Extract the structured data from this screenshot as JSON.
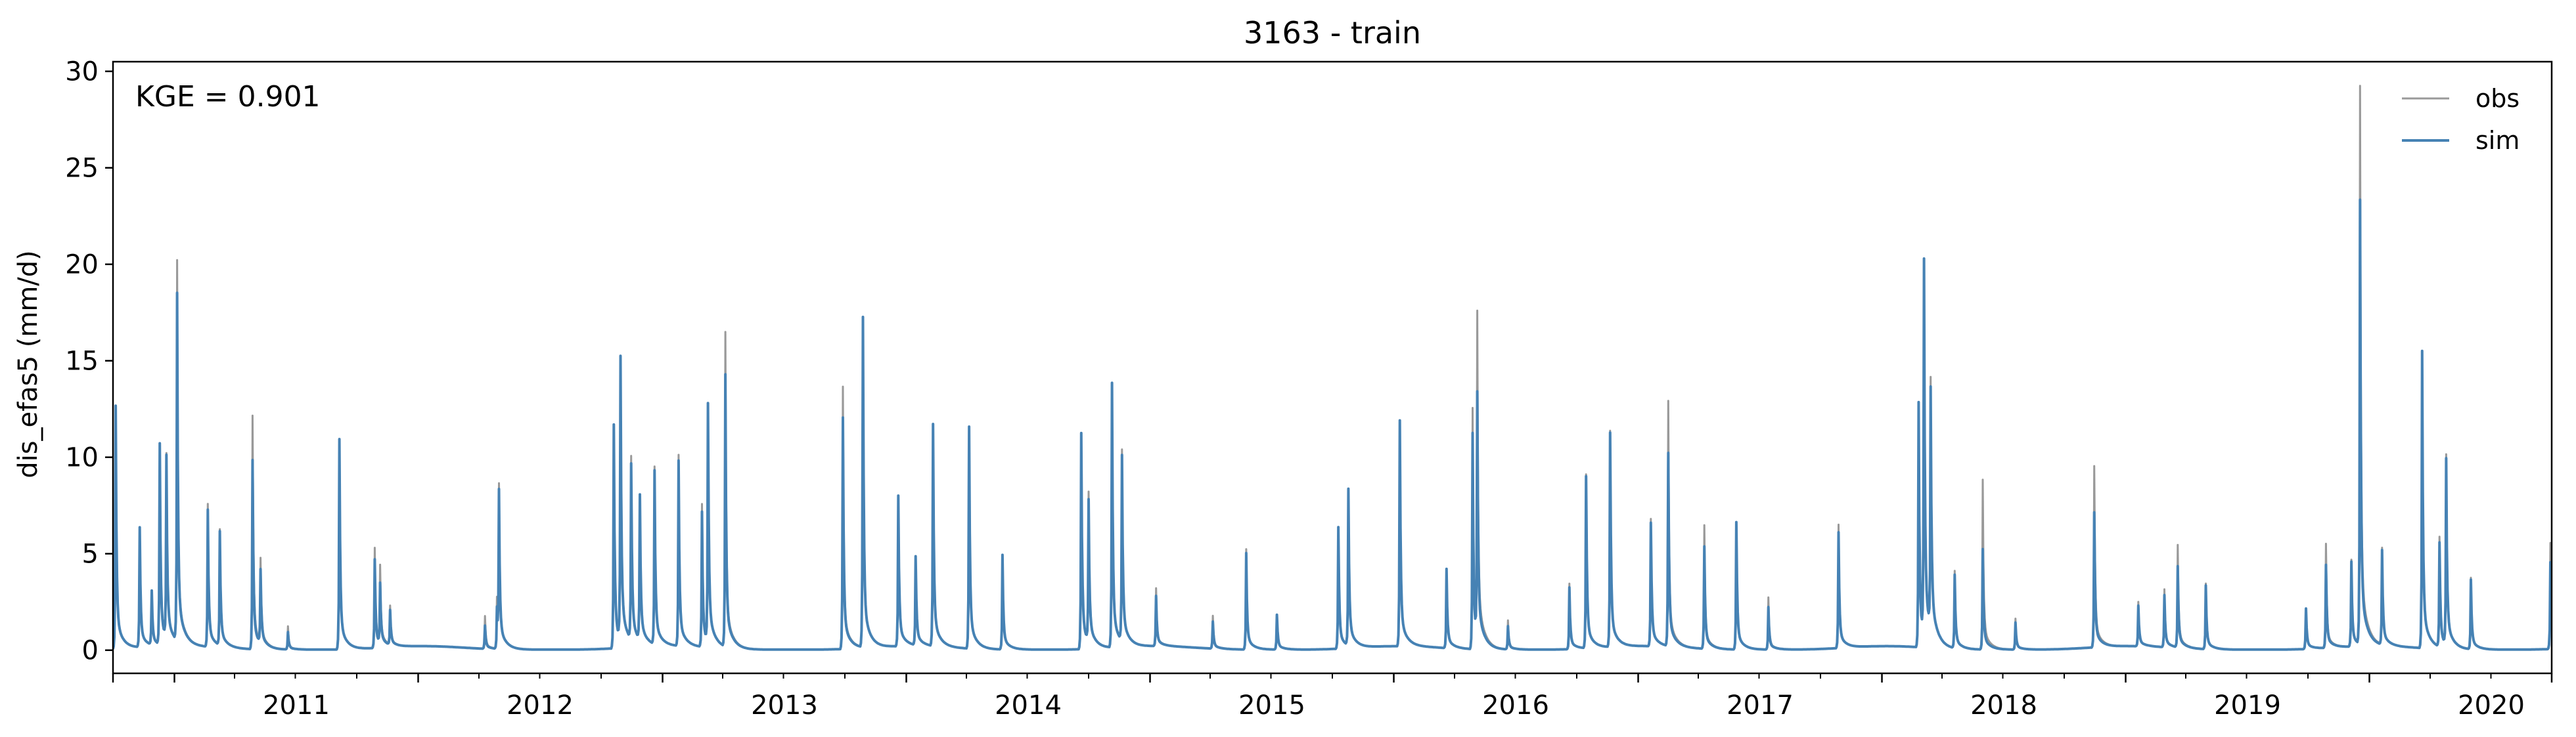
{
  "chart_data": {
    "type": "line",
    "title": "3163 - train",
    "ylabel": "dis_efas5 (mm/d)",
    "xlabel": "",
    "annotation": "KGE = 0.901",
    "x_start": "2010-10-01",
    "x_end": "2020-09-30",
    "xlim": [
      "2010-10-01",
      "2020-09-30"
    ],
    "ylim": [
      -1.2,
      30.5
    ],
    "yticks": [
      0,
      5,
      10,
      15,
      20,
      25,
      30
    ],
    "xticks": [
      {
        "date": "2011-01-01",
        "label": "2011"
      },
      {
        "date": "2012-01-01",
        "label": "2012"
      },
      {
        "date": "2013-01-01",
        "label": "2013"
      },
      {
        "date": "2014-01-01",
        "label": "2014"
      },
      {
        "date": "2015-01-01",
        "label": "2015"
      },
      {
        "date": "2016-01-01",
        "label": "2016"
      },
      {
        "date": "2017-01-01",
        "label": "2017"
      },
      {
        "date": "2018-01-01",
        "label": "2018"
      },
      {
        "date": "2019-01-01",
        "label": "2019"
      },
      {
        "date": "2020-01-01",
        "label": "2020"
      }
    ],
    "grid": false,
    "legend_position": "top-right",
    "series": [
      {
        "name": "obs",
        "color": "#999999",
        "peaks": [
          [
            "2010-10-05",
            12.4
          ],
          [
            "2010-11-10",
            6.1
          ],
          [
            "2010-11-28",
            2.8
          ],
          [
            "2010-12-10",
            10.3
          ],
          [
            "2010-12-20",
            9.5
          ],
          [
            "2011-01-05",
            19.7
          ],
          [
            "2011-02-20",
            7.4
          ],
          [
            "2011-03-10",
            6.0
          ],
          [
            "2011-04-28",
            12.1
          ],
          [
            "2011-05-10",
            4.3
          ],
          [
            "2011-06-20",
            1.2
          ],
          [
            "2011-09-05",
            10.6
          ],
          [
            "2011-10-28",
            5.2
          ],
          [
            "2011-11-05",
            4.0
          ],
          [
            "2011-11-20",
            2.0
          ],
          [
            "2012-04-10",
            1.7
          ],
          [
            "2012-04-28",
            2.6
          ],
          [
            "2012-05-01",
            8.1
          ],
          [
            "2012-10-20",
            11.6
          ],
          [
            "2012-10-30",
            14.2
          ],
          [
            "2012-11-15",
            9.5
          ],
          [
            "2012-11-28",
            7.0
          ],
          [
            "2012-12-20",
            9.2
          ],
          [
            "2013-01-25",
            9.9
          ],
          [
            "2013-03-01",
            7.4
          ],
          [
            "2013-03-10",
            11.8
          ],
          [
            "2013-04-05",
            16.3
          ],
          [
            "2013-09-28",
            13.6
          ],
          [
            "2013-10-28",
            17.0
          ],
          [
            "2013-12-20",
            7.6
          ],
          [
            "2014-01-15",
            4.4
          ],
          [
            "2014-02-10",
            10.8
          ],
          [
            "2014-04-05",
            11.4
          ],
          [
            "2014-05-25",
            4.8
          ],
          [
            "2014-09-20",
            11.1
          ],
          [
            "2014-10-01",
            7.7
          ],
          [
            "2014-11-05",
            13.3
          ],
          [
            "2014-11-20",
            9.9
          ],
          [
            "2015-01-10",
            3.0
          ],
          [
            "2015-04-05",
            1.7
          ],
          [
            "2015-05-25",
            5.2
          ],
          [
            "2015-07-10",
            1.8
          ],
          [
            "2015-10-10",
            6.2
          ],
          [
            "2015-10-25",
            7.9
          ],
          [
            "2016-01-10",
            11.6
          ],
          [
            "2016-03-20",
            4.0
          ],
          [
            "2016-04-28",
            12.5
          ],
          [
            "2016-05-05",
            16.7
          ],
          [
            "2016-06-20",
            1.5
          ],
          [
            "2016-09-20",
            3.4
          ],
          [
            "2016-10-15",
            9.0
          ],
          [
            "2016-11-20",
            11.2
          ],
          [
            "2017-01-20",
            6.6
          ],
          [
            "2017-02-15",
            12.7
          ],
          [
            "2017-04-10",
            6.4
          ],
          [
            "2017-05-28",
            6.6
          ],
          [
            "2017-07-15",
            2.7
          ],
          [
            "2017-10-28",
            6.4
          ],
          [
            "2018-02-25",
            12.6
          ],
          [
            "2018-03-05",
            19.4
          ],
          [
            "2018-03-15",
            12.9
          ],
          [
            "2018-04-20",
            4.0
          ],
          [
            "2018-06-01",
            8.8
          ],
          [
            "2018-07-20",
            1.6
          ],
          [
            "2018-11-15",
            9.4
          ],
          [
            "2019-01-20",
            2.3
          ],
          [
            "2019-02-28",
            3.0
          ],
          [
            "2019-03-20",
            5.3
          ],
          [
            "2019-05-01",
            3.4
          ],
          [
            "2019-09-28",
            2.1
          ],
          [
            "2019-10-28",
            5.4
          ],
          [
            "2019-12-05",
            4.5
          ],
          [
            "2019-12-18",
            28.9
          ],
          [
            "2020-01-20",
            5.0
          ],
          [
            "2020-03-20",
            15.3
          ],
          [
            "2020-04-15",
            5.7
          ],
          [
            "2020-04-25",
            9.8
          ],
          [
            "2020-06-01",
            3.7
          ],
          [
            "2020-09-28",
            5.5
          ]
        ]
      },
      {
        "name": "sim",
        "color": "#4682b4",
        "peaks": [
          [
            "2010-10-05",
            12.6
          ],
          [
            "2010-11-10",
            6.2
          ],
          [
            "2010-11-28",
            2.8
          ],
          [
            "2010-12-10",
            10.4
          ],
          [
            "2010-12-20",
            9.4
          ],
          [
            "2011-01-05",
            18.0
          ],
          [
            "2011-02-20",
            7.1
          ],
          [
            "2011-03-10",
            5.9
          ],
          [
            "2011-04-28",
            9.8
          ],
          [
            "2011-05-10",
            3.8
          ],
          [
            "2011-06-20",
            0.9
          ],
          [
            "2011-09-05",
            10.9
          ],
          [
            "2011-10-28",
            4.6
          ],
          [
            "2011-11-05",
            3.1
          ],
          [
            "2011-11-20",
            1.8
          ],
          [
            "2012-04-10",
            1.2
          ],
          [
            "2012-04-28",
            2.1
          ],
          [
            "2012-05-01",
            7.9
          ],
          [
            "2012-10-20",
            11.6
          ],
          [
            "2012-10-30",
            14.6
          ],
          [
            "2012-11-15",
            9.1
          ],
          [
            "2012-11-28",
            7.5
          ],
          [
            "2012-12-20",
            9.0
          ],
          [
            "2013-01-25",
            9.6
          ],
          [
            "2013-03-01",
            7.0
          ],
          [
            "2013-03-10",
            12.3
          ],
          [
            "2013-04-05",
            14.1
          ],
          [
            "2013-09-28",
            12.0
          ],
          [
            "2013-10-28",
            17.1
          ],
          [
            "2013-12-20",
            7.8
          ],
          [
            "2014-01-15",
            4.6
          ],
          [
            "2014-02-10",
            11.5
          ],
          [
            "2014-04-05",
            11.5
          ],
          [
            "2014-05-25",
            4.9
          ],
          [
            "2014-09-20",
            11.2
          ],
          [
            "2014-10-01",
            7.3
          ],
          [
            "2014-11-05",
            13.7
          ],
          [
            "2014-11-20",
            9.6
          ],
          [
            "2015-01-10",
            2.6
          ],
          [
            "2015-04-05",
            1.4
          ],
          [
            "2015-05-25",
            5.0
          ],
          [
            "2015-07-10",
            1.8
          ],
          [
            "2015-10-10",
            6.3
          ],
          [
            "2015-10-25",
            8.1
          ],
          [
            "2016-01-10",
            11.7
          ],
          [
            "2016-03-20",
            4.1
          ],
          [
            "2016-04-28",
            11.2
          ],
          [
            "2016-05-05",
            12.6
          ],
          [
            "2016-06-20",
            1.2
          ],
          [
            "2016-09-20",
            3.2
          ],
          [
            "2016-10-15",
            8.9
          ],
          [
            "2016-11-20",
            11.1
          ],
          [
            "2017-01-20",
            6.4
          ],
          [
            "2017-02-15",
            10.0
          ],
          [
            "2017-04-10",
            5.3
          ],
          [
            "2017-05-28",
            6.6
          ],
          [
            "2017-07-15",
            2.2
          ],
          [
            "2017-10-28",
            6.0
          ],
          [
            "2018-02-25",
            12.7
          ],
          [
            "2018-03-05",
            19.4
          ],
          [
            "2018-03-15",
            12.4
          ],
          [
            "2018-04-20",
            3.8
          ],
          [
            "2018-06-01",
            5.2
          ],
          [
            "2018-07-20",
            1.4
          ],
          [
            "2018-11-15",
            7.0
          ],
          [
            "2019-01-20",
            2.1
          ],
          [
            "2019-02-28",
            2.7
          ],
          [
            "2019-03-20",
            4.2
          ],
          [
            "2019-05-01",
            3.3
          ],
          [
            "2019-09-28",
            2.1
          ],
          [
            "2019-10-28",
            4.3
          ],
          [
            "2019-12-05",
            4.4
          ],
          [
            "2019-12-18",
            23.0
          ],
          [
            "2020-01-20",
            4.9
          ],
          [
            "2020-03-20",
            15.4
          ],
          [
            "2020-04-15",
            5.4
          ],
          [
            "2020-04-25",
            9.6
          ],
          [
            "2020-06-01",
            3.6
          ],
          [
            "2020-09-28",
            4.5
          ]
        ]
      }
    ]
  }
}
